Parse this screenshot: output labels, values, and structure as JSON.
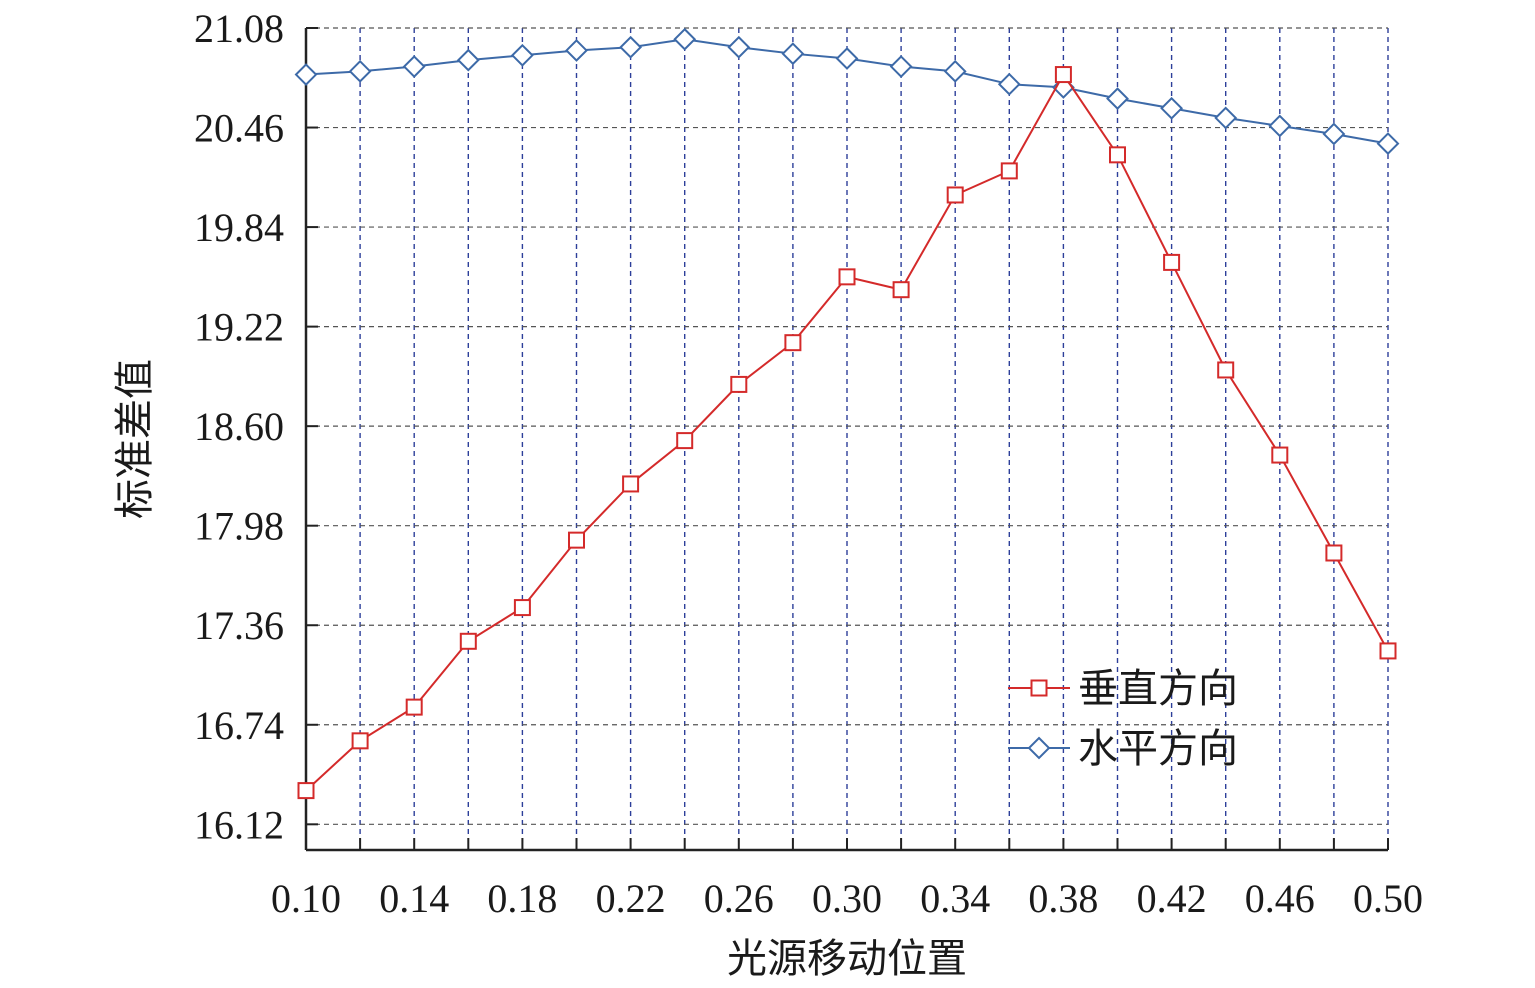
{
  "chart_data": {
    "type": "line",
    "xlabel": "光源移动位置",
    "ylabel": "标准差值",
    "xlim": [
      0.1,
      0.5
    ],
    "ylim": [
      15.96,
      21.08
    ],
    "grid": true,
    "legend_position": "bottom-right",
    "x_tick_labels": [
      "0.10",
      "0.14",
      "0.18",
      "0.22",
      "0.26",
      "0.30",
      "0.34",
      "0.38",
      "0.42",
      "0.46",
      "0.50"
    ],
    "y_tick_labels": [
      "21.08",
      "20.46",
      "19.84",
      "19.22",
      "18.60",
      "17.98",
      "17.36",
      "16.74",
      "16.12"
    ],
    "x": [
      0.1,
      0.12,
      0.14,
      0.16,
      0.18,
      0.2,
      0.22,
      0.24,
      0.26,
      0.28,
      0.3,
      0.32,
      0.34,
      0.36,
      0.38,
      0.4,
      0.42,
      0.44,
      0.46,
      0.48,
      0.5
    ],
    "series": [
      {
        "name": "垂直方向",
        "color": "#d42a2a",
        "marker": "square",
        "values": [
          16.33,
          16.64,
          16.85,
          17.26,
          17.47,
          17.89,
          18.24,
          18.51,
          18.86,
          19.12,
          19.53,
          19.45,
          20.04,
          20.19,
          20.79,
          20.29,
          19.62,
          18.95,
          18.42,
          17.81,
          17.2
        ]
      },
      {
        "name": "水平方向",
        "color": "#3d6aa8",
        "marker": "diamond",
        "values": [
          20.79,
          20.81,
          20.84,
          20.88,
          20.91,
          20.94,
          20.96,
          21.01,
          20.96,
          20.92,
          20.89,
          20.84,
          20.81,
          20.73,
          20.71,
          20.64,
          20.58,
          20.52,
          20.47,
          20.42,
          20.36
        ]
      }
    ]
  }
}
